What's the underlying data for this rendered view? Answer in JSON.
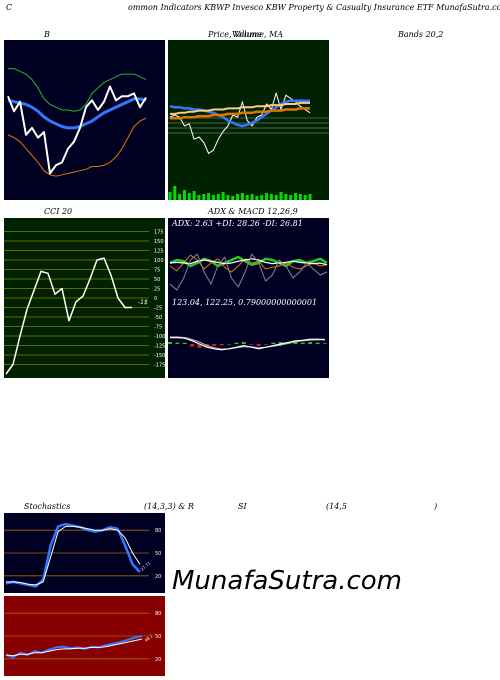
{
  "header": {
    "title_left": "C",
    "title_main": "ommon Indicators KBWP Invesco KBW Property & Casualty Insurance ETF MunafaSutra.com"
  },
  "labels": {
    "bollinger": "B",
    "price": "Price, Volume, MA",
    "price_overlap": "Volume",
    "bands": "Bands 20,2",
    "cci": "CCI 20",
    "adx_macd": "ADX & MACD 12,26,9",
    "adx_values": "ADX: 2.63 +DI: 28.26 -DI: 26.81",
    "macd_values": "123.04, 122.25, 0.79000000000001",
    "stoch_a": "Stochastics",
    "stoch_b": "(14,3,3) & R",
    "stoch_c": "SI",
    "stoch_d": "(14,5",
    "stoch_e": ")",
    "cci_marker": "-1$",
    "watermark": "MunafaSutra.com"
  },
  "colors": {
    "panel_dark": "#000022",
    "panel_green": "#002200",
    "panel_red": "#880000",
    "grid_olive": "#808000",
    "grid_orange": "#aa6600",
    "line_white": "#ffffff",
    "line_blue": "#3377ff",
    "line_green": "#22cc22",
    "line_orange": "#dd7700",
    "volume_green": "#00dd00"
  },
  "chart_data": [
    {
      "id": "bollinger",
      "type": "line",
      "ylim": [
        0,
        100
      ],
      "series": [
        {
          "values": [
            88,
            88,
            86,
            84,
            80,
            74,
            66,
            62,
            60,
            58,
            58,
            57,
            58,
            62,
            70,
            74,
            78,
            80,
            82,
            84,
            84,
            84,
            82,
            80
          ]
        },
        {
          "values": [
            65,
            64,
            63,
            62,
            60,
            57,
            53,
            50,
            48,
            46,
            45,
            45,
            46,
            48,
            50,
            53,
            56,
            58,
            60,
            62,
            64,
            66,
            66,
            65
          ]
        },
        {
          "values": [
            40,
            38,
            35,
            30,
            25,
            20,
            14,
            11,
            10,
            11,
            12,
            13,
            14,
            15,
            17,
            17,
            18,
            20,
            24,
            30,
            38,
            46,
            50,
            52
          ]
        },
        {
          "values": [
            68,
            57,
            64,
            40,
            45,
            38,
            42,
            12,
            18,
            20,
            30,
            35,
            45,
            60,
            65,
            58,
            64,
            75,
            65,
            68,
            68,
            70,
            60,
            67
          ]
        }
      ]
    },
    {
      "id": "price",
      "type": "line",
      "ylim": [
        0,
        100
      ],
      "series": [
        {
          "values": [
            48,
            50,
            48,
            40,
            42,
            28,
            30,
            25,
            15,
            18,
            28,
            35,
            40,
            50,
            48,
            62,
            45,
            40,
            48,
            50,
            60,
            55,
            70,
            55,
            68,
            65,
            62,
            58,
            55,
            52
          ]
        },
        {
          "values": [
            58,
            57,
            57,
            56,
            56,
            55,
            55,
            54,
            53,
            52,
            50,
            48,
            45,
            43,
            41,
            40,
            41,
            43,
            45,
            48,
            51,
            54,
            57,
            60,
            62,
            63,
            63,
            63,
            63,
            63
          ]
        },
        {
          "values": [
            51,
            51,
            52,
            52,
            53,
            53,
            54,
            54,
            54,
            55,
            55,
            55,
            56,
            56,
            56,
            57,
            57,
            57,
            58,
            58,
            58,
            59,
            59,
            59,
            60,
            60,
            60,
            61,
            61,
            61
          ]
        },
        {
          "values": [
            47,
            47,
            47,
            48,
            48,
            48,
            49,
            49,
            49,
            50,
            50,
            50,
            51,
            51,
            51,
            52,
            52,
            52,
            53,
            53,
            53,
            54,
            54,
            54,
            55,
            55,
            55,
            56,
            56,
            56
          ]
        }
      ],
      "volume": [
        8,
        14,
        6,
        10,
        7,
        9,
        5,
        6,
        7,
        5,
        6,
        8,
        5,
        4,
        6,
        7,
        5,
        6,
        4,
        5,
        7,
        6,
        5,
        8,
        6,
        5,
        7,
        6,
        5,
        6
      ]
    },
    {
      "id": "cci",
      "type": "line",
      "ticks": [
        175,
        150,
        125,
        100,
        75,
        50,
        25,
        0,
        -25,
        -50,
        -75,
        -100,
        -125,
        -150,
        -175
      ],
      "ylim": [
        -200,
        200
      ],
      "values": [
        -200,
        -175,
        -100,
        -30,
        20,
        70,
        65,
        10,
        25,
        -60,
        -10,
        5,
        50,
        100,
        105,
        60,
        0,
        -25,
        -25
      ]
    },
    {
      "id": "adx",
      "type": "line",
      "ylim": [
        0,
        100
      ],
      "series": [
        {
          "values": [
            55,
            60,
            58,
            50,
            55,
            62,
            58,
            50,
            55,
            60,
            65,
            58,
            52,
            55,
            62,
            60,
            55,
            50,
            58,
            60,
            55,
            58,
            62,
            55
          ]
        },
        {
          "values": [
            50,
            42,
            55,
            68,
            60,
            45,
            55,
            62,
            48,
            40,
            50,
            62,
            55,
            58,
            45,
            48,
            50,
            55,
            48,
            45,
            50,
            55,
            50,
            52
          ]
        },
        {
          "values": [
            55,
            56,
            55,
            54,
            58,
            60,
            58,
            56,
            54,
            55,
            58,
            60,
            62,
            60,
            56,
            54,
            55,
            56,
            58,
            56,
            55,
            54,
            55,
            52
          ]
        },
        {
          "values": [
            20,
            10,
            30,
            60,
            70,
            40,
            20,
            50,
            65,
            30,
            15,
            40,
            70,
            55,
            25,
            35,
            60,
            50,
            30,
            40,
            55,
            45,
            35,
            40
          ]
        }
      ]
    },
    {
      "id": "macd",
      "type": "line",
      "ylim": [
        -100,
        100
      ],
      "series": [
        {
          "values": [
            20,
            20,
            18,
            10,
            0,
            -10,
            -15,
            -18,
            -15,
            -10,
            -5,
            -10,
            -15,
            -10,
            -5,
            0,
            5,
            10,
            12,
            15,
            15,
            14
          ]
        },
        {
          "values": [
            22,
            22,
            20,
            14,
            6,
            -5,
            -12,
            -16,
            -15,
            -12,
            -8,
            -9,
            -12,
            -10,
            -7,
            -3,
            2,
            7,
            10,
            12,
            13,
            13
          ]
        }
      ],
      "histogram": [
        3,
        2,
        2,
        -4,
        -6,
        -5,
        -3,
        -2,
        0,
        2,
        3,
        -1,
        -3,
        0,
        2,
        3,
        3,
        3,
        2,
        3,
        2,
        1
      ]
    },
    {
      "id": "stochastics",
      "type": "line",
      "ticks": [
        80,
        50,
        20
      ],
      "ylim": [
        0,
        100
      ],
      "series": [
        {
          "values": [
            10,
            12,
            10,
            8,
            6,
            15,
            60,
            85,
            88,
            86,
            84,
            80,
            78,
            80,
            84,
            82,
            60,
            35,
            25
          ]
        },
        {
          "values": [
            12,
            12,
            11,
            9,
            8,
            12,
            45,
            78,
            85,
            85,
            84,
            82,
            80,
            80,
            82,
            80,
            70,
            50,
            35
          ]
        }
      ],
      "value_label": "27.71"
    },
    {
      "id": "rsi",
      "type": "line",
      "ticks": [
        80,
        50,
        20
      ],
      "ylim": [
        0,
        100
      ],
      "series": [
        {
          "values": [
            25,
            22,
            28,
            25,
            30,
            28,
            32,
            35,
            36,
            34,
            35,
            33,
            36,
            35,
            38,
            40,
            42,
            45,
            48,
            50
          ]
        },
        {
          "values": [
            25,
            24,
            26,
            26,
            28,
            28,
            30,
            32,
            33,
            33,
            34,
            34,
            35,
            35,
            36,
            38,
            40,
            42,
            44,
            46
          ]
        }
      ],
      "value_label": "48.2"
    }
  ]
}
